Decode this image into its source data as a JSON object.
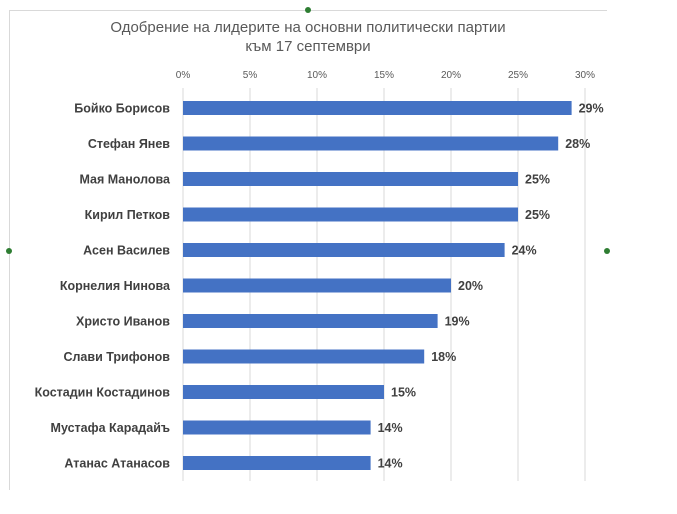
{
  "chart_data": {
    "type": "bar",
    "orientation": "horizontal",
    "title": "Одобрение на лидерите на основни политически партии",
    "subtitle": "към 17 септември",
    "categories": [
      "Бойко Борисов",
      "Стефан Янев",
      "Мая Манолова",
      "Кирил Петков",
      "Асен Василев",
      "Корнелия Нинова",
      "Христо Иванов",
      "Слави Трифонов",
      "Костадин Костадинов",
      "Мустафа Карадайъ",
      "Атанас Атанасов"
    ],
    "values": [
      29,
      28,
      25,
      25,
      24,
      20,
      19,
      18,
      15,
      14,
      14
    ],
    "data_labels": [
      "29%",
      "28%",
      "25%",
      "25%",
      "24%",
      "20%",
      "19%",
      "18%",
      "15%",
      "14%",
      "14%"
    ],
    "x_ticks": [
      0,
      5,
      10,
      15,
      20,
      25,
      30
    ],
    "x_tick_labels": [
      "0%",
      "5%",
      "10%",
      "15%",
      "20%",
      "25%",
      "30%"
    ],
    "xlim": [
      0,
      30
    ],
    "axis_position": "top",
    "grid": true,
    "bar_color": "#4472c4",
    "grid_color": "#d9d9d9"
  }
}
